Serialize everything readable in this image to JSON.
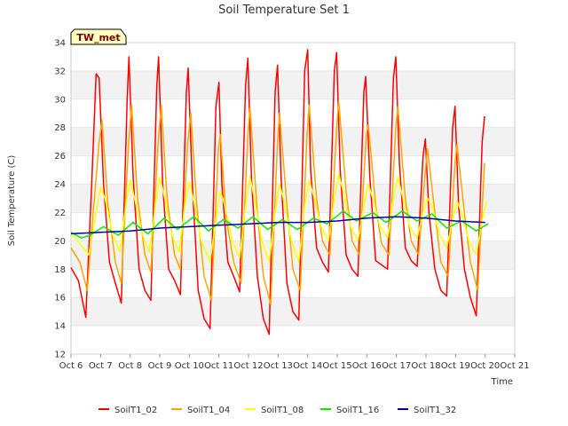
{
  "chart_data": {
    "type": "line",
    "title": "Soil Temperature Set 1",
    "xlabel": "Time",
    "ylabel": "Soil Temperature (C)",
    "badge": "TW_met",
    "ylim": [
      12,
      34
    ],
    "yticks": [
      12,
      14,
      16,
      18,
      20,
      22,
      24,
      26,
      28,
      30,
      32,
      34
    ],
    "xlim": [
      0,
      15
    ],
    "xtick_labels": [
      "Oct 6",
      "Oct 7",
      "Oct 8",
      "Oct 9",
      "Oct 10",
      "Oct 11",
      "Oct 12",
      "Oct 13",
      "Oct 14",
      "Oct 15",
      "Oct 16",
      "Oct 17",
      "Oct 18",
      "Oct 19",
      "Oct 20",
      "Oct 21"
    ],
    "x_units": "days since Oct 6",
    "series": [
      {
        "name": "SoilT1_02",
        "color": "#ff0000",
        "x": [
          0.0,
          0.25,
          0.5,
          0.7,
          0.85,
          0.95,
          1.1,
          1.3,
          1.5,
          1.7,
          1.9,
          1.96,
          2.1,
          2.3,
          2.5,
          2.7,
          2.9,
          2.96,
          3.1,
          3.3,
          3.5,
          3.7,
          3.9,
          3.96,
          4.1,
          4.3,
          4.5,
          4.7,
          4.9,
          5.0,
          5.1,
          5.3,
          5.5,
          5.7,
          5.9,
          5.98,
          6.1,
          6.3,
          6.5,
          6.7,
          6.9,
          6.98,
          7.1,
          7.3,
          7.5,
          7.7,
          7.9,
          8.0,
          8.1,
          8.3,
          8.5,
          8.7,
          8.9,
          8.98,
          9.1,
          9.3,
          9.5,
          9.7,
          9.9,
          9.96,
          10.1,
          10.3,
          10.5,
          10.7,
          10.9,
          10.98,
          11.1,
          11.3,
          11.5,
          11.7,
          11.9,
          11.98,
          12.1,
          12.3,
          12.5,
          12.7,
          12.9,
          12.98,
          13.1,
          13.3,
          13.5,
          13.7,
          13.9,
          13.98
        ],
        "y": [
          18.1,
          17.2,
          14.6,
          24.0,
          31.8,
          31.5,
          24.0,
          18.5,
          17.0,
          15.6,
          30.0,
          33.0,
          24.5,
          18.0,
          16.5,
          15.8,
          31.0,
          33.0,
          24.0,
          18.0,
          17.2,
          16.2,
          30.5,
          32.2,
          24.0,
          16.5,
          14.5,
          13.8,
          29.5,
          31.2,
          24.0,
          18.5,
          17.5,
          16.4,
          31.0,
          32.9,
          24.5,
          17.5,
          14.5,
          13.4,
          30.5,
          32.4,
          24.5,
          17.0,
          15.0,
          14.4,
          32.0,
          33.5,
          25.0,
          19.5,
          18.5,
          17.8,
          32.0,
          33.3,
          25.0,
          19.0,
          18.0,
          17.5,
          30.5,
          31.6,
          24.5,
          18.6,
          18.3,
          18.0,
          31.5,
          33.0,
          25.5,
          19.5,
          18.6,
          18.2,
          26.0,
          27.2,
          22.0,
          18.0,
          16.5,
          16.1,
          28.0,
          29.5,
          22.5,
          18.0,
          16.0,
          14.7,
          27.0,
          28.8
        ]
      },
      {
        "name": "SoilT1_04",
        "color": "#ffa500",
        "x": [
          0.0,
          0.3,
          0.55,
          0.75,
          0.95,
          1.05,
          1.25,
          1.5,
          1.7,
          1.95,
          2.05,
          2.25,
          2.5,
          2.7,
          2.95,
          3.05,
          3.25,
          3.5,
          3.7,
          3.95,
          4.05,
          4.25,
          4.5,
          4.75,
          4.98,
          5.05,
          5.25,
          5.5,
          5.75,
          5.98,
          6.05,
          6.3,
          6.5,
          6.75,
          6.98,
          7.05,
          7.3,
          7.5,
          7.75,
          7.98,
          8.05,
          8.3,
          8.5,
          8.75,
          8.98,
          9.05,
          9.3,
          9.5,
          9.75,
          9.98,
          10.05,
          10.3,
          10.5,
          10.75,
          10.98,
          11.05,
          11.3,
          11.5,
          11.75,
          11.98,
          12.05,
          12.3,
          12.5,
          12.75,
          12.98,
          13.05,
          13.3,
          13.5,
          13.75,
          13.98
        ],
        "y": [
          19.5,
          18.5,
          16.5,
          22.0,
          27.0,
          28.5,
          22.5,
          18.5,
          17.0,
          27.0,
          29.6,
          23.0,
          19.0,
          17.8,
          27.0,
          29.6,
          23.0,
          19.0,
          18.0,
          27.0,
          29.0,
          22.5,
          17.5,
          15.8,
          26.5,
          27.5,
          21.5,
          18.5,
          17.0,
          27.5,
          29.4,
          22.0,
          17.5,
          15.5,
          27.0,
          29.0,
          22.5,
          18.0,
          16.5,
          27.5,
          29.6,
          23.0,
          20.0,
          19.0,
          28.0,
          29.8,
          23.5,
          20.0,
          19.0,
          27.5,
          28.2,
          22.5,
          19.8,
          19.0,
          28.0,
          29.5,
          23.0,
          20.0,
          19.0,
          25.0,
          26.5,
          22.0,
          18.5,
          17.5,
          25.5,
          26.8,
          22.0,
          18.5,
          16.5,
          25.5
        ]
      },
      {
        "name": "SoilT1_08",
        "color": "#ffff00",
        "x": [
          0.0,
          0.3,
          0.6,
          0.85,
          1.0,
          1.15,
          1.4,
          1.65,
          1.85,
          2.0,
          2.15,
          2.4,
          2.65,
          2.85,
          3.0,
          3.15,
          3.4,
          3.65,
          3.85,
          4.0,
          4.15,
          4.4,
          4.7,
          4.9,
          5.05,
          5.2,
          5.45,
          5.7,
          5.9,
          6.05,
          6.2,
          6.45,
          6.7,
          6.9,
          7.05,
          7.2,
          7.45,
          7.7,
          7.9,
          8.05,
          8.2,
          8.45,
          8.7,
          8.9,
          9.05,
          9.2,
          9.45,
          9.7,
          9.9,
          10.05,
          10.2,
          10.45,
          10.7,
          10.9,
          11.05,
          11.2,
          11.45,
          11.7,
          11.9,
          12.05,
          12.2,
          12.45,
          12.7,
          12.9,
          13.05,
          13.2,
          13.45,
          13.7,
          13.9,
          14.05
        ],
        "y": [
          20.5,
          19.8,
          19.0,
          22.0,
          23.8,
          23.0,
          20.5,
          19.2,
          22.5,
          24.3,
          23.0,
          20.5,
          19.2,
          22.5,
          24.5,
          23.2,
          20.5,
          19.2,
          22.5,
          24.2,
          22.8,
          20.0,
          18.5,
          21.5,
          23.5,
          22.5,
          20.0,
          18.8,
          22.5,
          24.5,
          23.0,
          20.0,
          18.5,
          22.0,
          24.0,
          22.8,
          20.0,
          18.5,
          22.5,
          24.3,
          23.2,
          21.0,
          20.0,
          23.0,
          24.7,
          23.5,
          21.0,
          20.0,
          22.5,
          24.0,
          23.0,
          21.0,
          20.2,
          23.0,
          24.5,
          23.2,
          21.0,
          20.2,
          22.0,
          23.0,
          22.5,
          20.5,
          19.5,
          21.5,
          22.8,
          22.0,
          20.0,
          19.0,
          21.5,
          22.8
        ]
      },
      {
        "name": "SoilT1_16",
        "color": "#00ee00",
        "x": [
          0.0,
          0.35,
          0.65,
          1.1,
          1.6,
          2.1,
          2.6,
          3.15,
          3.6,
          4.15,
          4.65,
          5.15,
          5.65,
          6.15,
          6.65,
          7.15,
          7.65,
          8.2,
          8.65,
          9.2,
          9.65,
          10.2,
          10.65,
          11.2,
          11.7,
          12.2,
          12.7,
          13.2,
          13.7,
          14.1
        ],
        "y": [
          20.6,
          20.2,
          20.4,
          21.0,
          20.4,
          21.3,
          20.5,
          21.6,
          20.8,
          21.7,
          20.7,
          21.5,
          20.9,
          21.7,
          20.8,
          21.5,
          20.8,
          21.6,
          21.2,
          22.1,
          21.4,
          22.0,
          21.3,
          22.1,
          21.4,
          21.9,
          20.9,
          21.4,
          20.7,
          21.2
        ]
      },
      {
        "name": "SoilT1_32",
        "color": "#0000aa",
        "x": [
          0.0,
          1.0,
          2.0,
          3.0,
          4.0,
          5.0,
          6.0,
          7.0,
          8.0,
          9.0,
          10.0,
          11.0,
          12.0,
          13.0,
          14.0
        ],
        "y": [
          20.5,
          20.6,
          20.7,
          20.9,
          21.0,
          21.1,
          21.2,
          21.3,
          21.3,
          21.4,
          21.6,
          21.7,
          21.6,
          21.4,
          21.3
        ]
      }
    ]
  }
}
